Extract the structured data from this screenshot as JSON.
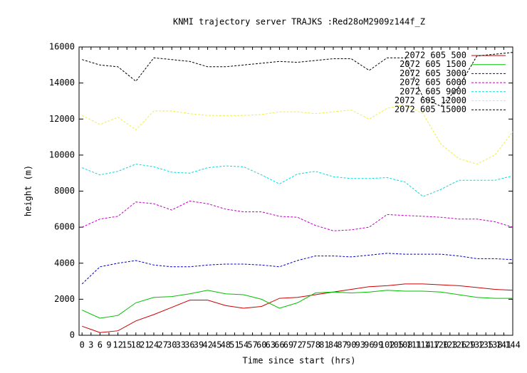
{
  "chart_data": {
    "type": "line",
    "title": "KNMI trajectory server TRAJKS :Red28oM2909z144f_Z",
    "x_label": "Time since start (hrs)",
    "y_label": "height (m)",
    "x": [
      0,
      6,
      12,
      18,
      24,
      30,
      36,
      42,
      48,
      54,
      60,
      66,
      72,
      78,
      84,
      90,
      96,
      102,
      108,
      114,
      120,
      126,
      132,
      138,
      144
    ],
    "xlim": [
      -1,
      144
    ],
    "xticks": [
      0,
      3,
      6,
      9,
      12,
      15,
      18,
      21,
      24,
      27,
      30,
      33,
      36,
      39,
      42,
      45,
      48,
      51,
      54,
      57,
      60,
      63,
      66,
      69,
      72,
      75,
      78,
      81,
      84,
      87,
      90,
      93,
      96,
      99,
      102,
      105,
      108,
      111,
      114,
      117,
      120,
      123,
      126,
      129,
      132,
      135,
      138,
      141,
      144
    ],
    "ylim": [
      0,
      16000
    ],
    "yticks": [
      0,
      2000,
      4000,
      6000,
      8000,
      10000,
      12000,
      14000,
      16000
    ],
    "legend": "top-right",
    "series": [
      {
        "name": "2072 605 500",
        "color": "#cc0000",
        "dash": false,
        "values": [
          500,
          150,
          250,
          800,
          1150,
          1550,
          1950,
          1950,
          1650,
          1500,
          1600,
          2050,
          2100,
          2250,
          2400,
          2550,
          2700,
          2750,
          2850,
          2850,
          2800,
          2750,
          2650,
          2550,
          2500
        ]
      },
      {
        "name": "2072 605 1500",
        "color": "#00c000",
        "dash": false,
        "values": [
          1400,
          950,
          1100,
          1800,
          2100,
          2150,
          2300,
          2500,
          2300,
          2250,
          2000,
          1500,
          1800,
          2350,
          2400,
          2350,
          2400,
          2500,
          2450,
          2450,
          2400,
          2250,
          2100,
          2050,
          2050
        ]
      },
      {
        "name": "2072 605 3000",
        "color": "#0000c0",
        "dash": true,
        "values": [
          2850,
          3800,
          4000,
          4150,
          3900,
          3800,
          3800,
          3900,
          3950,
          3950,
          3900,
          3800,
          4150,
          4400,
          4400,
          4350,
          4450,
          4550,
          4500,
          4500,
          4500,
          4400,
          4250,
          4250,
          4200
        ]
      },
      {
        "name": "2072 605 6000",
        "color": "#c000c0",
        "dash": true,
        "values": [
          6000,
          6450,
          6600,
          7400,
          7300,
          6950,
          7450,
          7300,
          7000,
          6850,
          6850,
          6600,
          6550,
          6100,
          5800,
          5850,
          6000,
          6700,
          6650,
          6600,
          6550,
          6450,
          6450,
          6300,
          6000
        ]
      },
      {
        "name": "2072 605 9000",
        "color": "#00dddd",
        "dash": true,
        "values": [
          9300,
          8900,
          9100,
          9500,
          9350,
          9050,
          9000,
          9300,
          9400,
          9350,
          8900,
          8400,
          8950,
          9100,
          8800,
          8700,
          8700,
          8750,
          8500,
          7700,
          8100,
          8600,
          8600,
          8600,
          8850
        ]
      },
      {
        "name": "2072 605 12000",
        "color": "#f0f040",
        "dash": true,
        "values": [
          12200,
          11700,
          12100,
          11400,
          12450,
          12450,
          12300,
          12200,
          12200,
          12200,
          12250,
          12400,
          12400,
          12300,
          12400,
          12500,
          12000,
          12600,
          12800,
          12300,
          10600,
          9800,
          9500,
          10000,
          11300
        ]
      },
      {
        "name": "2072 605 15000",
        "color": "#000000",
        "dash": true,
        "values": [
          15300,
          15000,
          14900,
          14100,
          15400,
          15300,
          15200,
          14900,
          14900,
          15000,
          15100,
          15200,
          15150,
          15250,
          15350,
          15350,
          14700,
          15400,
          15400,
          13200,
          12700,
          13800,
          15500,
          15600,
          15700
        ]
      }
    ]
  }
}
